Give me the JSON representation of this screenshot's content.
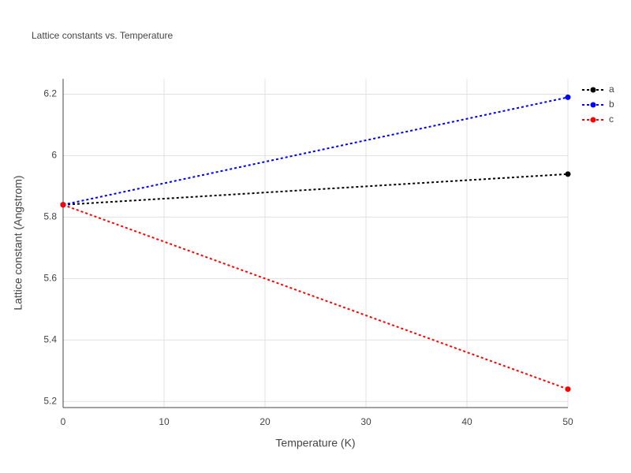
{
  "chart_data": {
    "type": "line",
    "title": "Lattice constants vs. Temperature",
    "x_label": "Temperature (K)",
    "y_label": "Lattice constant (Angstrom)",
    "x": [
      0,
      50
    ],
    "series": [
      {
        "name": "a",
        "color": "#000000",
        "values": [
          5.84,
          5.94
        ]
      },
      {
        "name": "b",
        "color": "#0000ff",
        "values": [
          5.84,
          6.19
        ]
      },
      {
        "name": "c",
        "color": "#ff0000",
        "values": [
          5.84,
          5.24
        ]
      }
    ],
    "xlim": [
      0,
      50
    ],
    "xticks": [
      0,
      10,
      20,
      30,
      40,
      50
    ],
    "ylim": [
      5.18,
      6.25
    ],
    "yticks": [
      5.2,
      5.4,
      5.6,
      5.8,
      6,
      6.2
    ],
    "grid": true,
    "legend": "right"
  }
}
